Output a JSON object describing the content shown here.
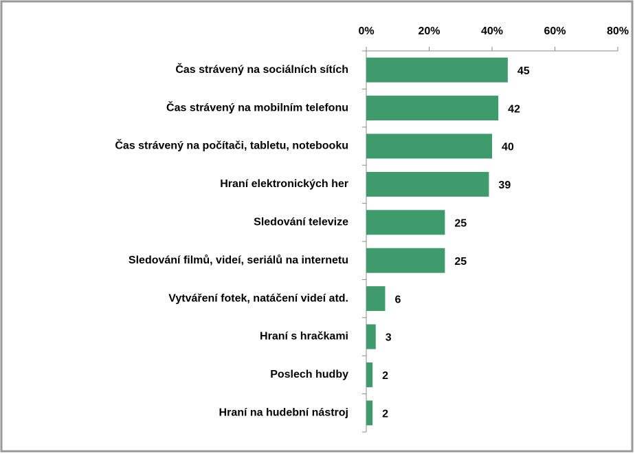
{
  "chart_data": {
    "type": "barh",
    "categories": [
      "Čas strávený na sociálních sítích",
      "Čas strávený na mobilním telefonu",
      "Čas strávený na počítači, tabletu, notebooku",
      "Hraní elektronických her",
      "Sledování televize",
      "Sledování filmů, videí, seriálů na internetu",
      "Vytváření fotek, natáčení videí atd.",
      "Hraní s hračkami",
      "Poslech hudby",
      "Hraní na hudební nástroj"
    ],
    "values": [
      45,
      42,
      40,
      39,
      25,
      25,
      6,
      3,
      2,
      2
    ],
    "color": "#3f9a6c",
    "xlim": [
      0,
      80
    ],
    "xticks": [
      {
        "value": 0,
        "label": "0%"
      },
      {
        "value": 20,
        "label": "20%"
      },
      {
        "value": 40,
        "label": "40%"
      },
      {
        "value": 60,
        "label": "60%"
      },
      {
        "value": 80,
        "label": "80%"
      }
    ]
  }
}
